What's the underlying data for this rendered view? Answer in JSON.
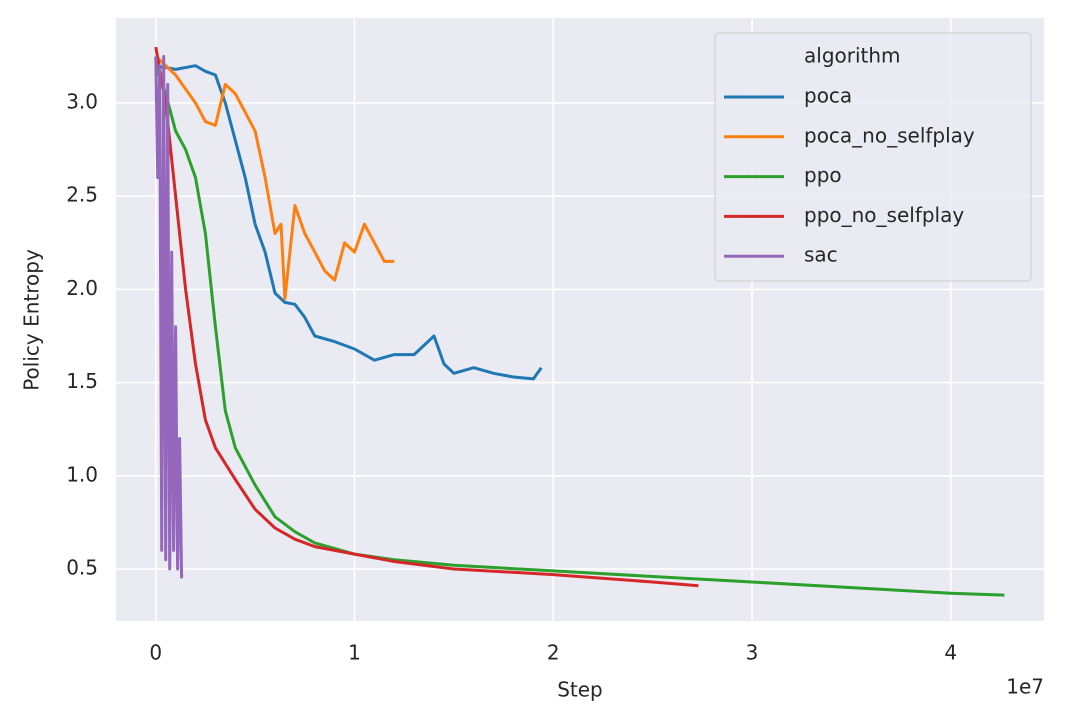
{
  "chart_data": {
    "type": "line",
    "x_label": "Step",
    "y_label": "Policy Entropy",
    "x_offset_label": "1e7",
    "legend_title": "algorithm",
    "legend": "upper right",
    "grid": true,
    "xlim": [
      -2000000,
      44690000
    ],
    "ylim": [
      0.221,
      3.456
    ],
    "xticks": [
      0,
      {
        "value": 10000000,
        "label": "1"
      },
      {
        "value": 20000000,
        "label": "2"
      },
      {
        "value": 30000000,
        "label": "3"
      },
      {
        "value": 40000000,
        "label": "4"
      }
    ],
    "yticks": [
      0.5,
      {
        "value": 1.0,
        "label": "1.0"
      },
      1.5,
      {
        "value": 2.0,
        "label": "2.0"
      },
      2.5,
      {
        "value": 3.0,
        "label": "3.0"
      }
    ],
    "series": [
      {
        "name": "poca",
        "color": "#1f77b4",
        "x": [
          0,
          1000000,
          2000000,
          2500000,
          3000000,
          3500000,
          4000000,
          4500000,
          5000000,
          5500000,
          6000000,
          6500000,
          7000000,
          7500000,
          8000000,
          9000000,
          10000000,
          11000000,
          12000000,
          13000000,
          14000000,
          14500000,
          15000000,
          16000000,
          17000000,
          18000000,
          19000000,
          19400000
        ],
        "values": [
          3.2,
          3.18,
          3.2,
          3.17,
          3.15,
          3.0,
          2.8,
          2.6,
          2.35,
          2.2,
          1.98,
          1.93,
          1.92,
          1.85,
          1.75,
          1.72,
          1.68,
          1.62,
          1.65,
          1.65,
          1.75,
          1.6,
          1.55,
          1.58,
          1.55,
          1.53,
          1.52,
          1.58
        ]
      },
      {
        "name": "poca_no_selfplay",
        "color": "#ff7f0e",
        "x": [
          0,
          1000000,
          2000000,
          2500000,
          3000000,
          3500000,
          4000000,
          4500000,
          5000000,
          5500000,
          6000000,
          6300000,
          6500000,
          7000000,
          7500000,
          8000000,
          8500000,
          9000000,
          9500000,
          10000000,
          10500000,
          11000000,
          11500000,
          12000000
        ],
        "values": [
          3.25,
          3.15,
          3.0,
          2.9,
          2.88,
          3.1,
          3.05,
          2.95,
          2.85,
          2.6,
          2.3,
          2.35,
          1.95,
          2.45,
          2.3,
          2.2,
          2.1,
          2.05,
          2.25,
          2.2,
          2.35,
          2.25,
          2.15,
          2.15
        ]
      },
      {
        "name": "ppo",
        "color": "#2ca02c",
        "x": [
          0,
          500000,
          1000000,
          1500000,
          2000000,
          2500000,
          3000000,
          3500000,
          4000000,
          5000000,
          6000000,
          7000000,
          8000000,
          10000000,
          12000000,
          15000000,
          20000000,
          25000000,
          30000000,
          35000000,
          40000000,
          42700000
        ],
        "values": [
          3.2,
          3.05,
          2.85,
          2.75,
          2.6,
          2.3,
          1.8,
          1.35,
          1.15,
          0.95,
          0.78,
          0.7,
          0.64,
          0.58,
          0.55,
          0.52,
          0.49,
          0.46,
          0.43,
          0.4,
          0.37,
          0.36
        ]
      },
      {
        "name": "ppo_no_selfplay",
        "color": "#d62728",
        "x": [
          0,
          500000,
          1000000,
          1500000,
          2000000,
          2500000,
          3000000,
          4000000,
          5000000,
          6000000,
          7000000,
          8000000,
          10000000,
          12000000,
          15000000,
          20000000,
          25000000,
          27300000
        ],
        "values": [
          3.3,
          3.0,
          2.5,
          2.0,
          1.6,
          1.3,
          1.15,
          0.98,
          0.82,
          0.72,
          0.66,
          0.62,
          0.58,
          0.54,
          0.5,
          0.47,
          0.43,
          0.41
        ]
      },
      {
        "name": "sac",
        "color": "#9467bd",
        "x": [
          0,
          100000,
          200000,
          300000,
          400000,
          500000,
          600000,
          700000,
          800000,
          900000,
          1000000,
          1100000,
          1200000,
          1300000
        ],
        "values": [
          3.25,
          2.6,
          3.2,
          0.6,
          3.25,
          0.55,
          3.1,
          0.5,
          2.2,
          0.6,
          1.8,
          0.5,
          1.2,
          0.45
        ]
      }
    ]
  }
}
